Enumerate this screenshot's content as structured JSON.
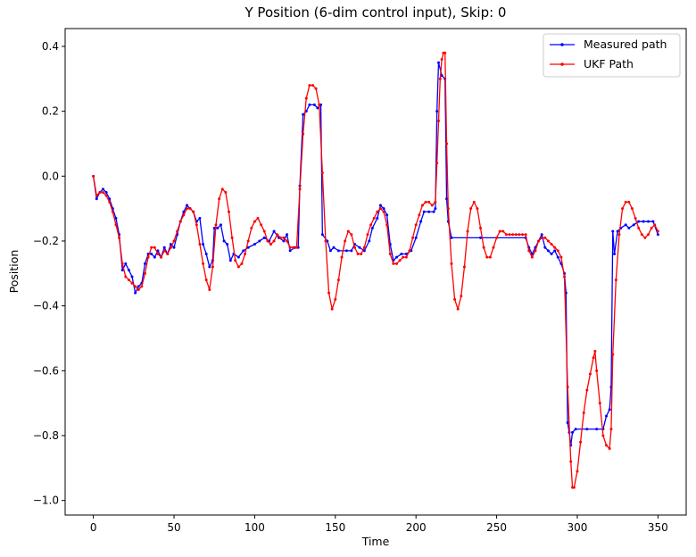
{
  "chart_data": {
    "type": "line",
    "title": "Y Position (6-dim control input), Skip: 0",
    "xlabel": "Time",
    "ylabel": "Position",
    "xlim": [
      -17.5,
      367.5
    ],
    "ylim": [
      -1.045,
      0.455
    ],
    "xticks": [
      0,
      50,
      100,
      150,
      200,
      250,
      300,
      350
    ],
    "yticks": [
      -1.0,
      -0.8,
      -0.6,
      -0.4,
      -0.2,
      0.0,
      0.2,
      0.4
    ],
    "grid": false,
    "legend_position": "top-right",
    "series": [
      {
        "name": "Measured path",
        "color": "#0000ff",
        "marker": "dot",
        "points": [
          [
            0,
            0.0
          ],
          [
            2,
            -0.07
          ],
          [
            4,
            -0.05
          ],
          [
            6,
            -0.04
          ],
          [
            8,
            -0.05
          ],
          [
            10,
            -0.07
          ],
          [
            12,
            -0.1
          ],
          [
            14,
            -0.13
          ],
          [
            16,
            -0.18
          ],
          [
            18,
            -0.29
          ],
          [
            20,
            -0.27
          ],
          [
            22,
            -0.29
          ],
          [
            24,
            -0.31
          ],
          [
            26,
            -0.36
          ],
          [
            28,
            -0.34
          ],
          [
            30,
            -0.33
          ],
          [
            32,
            -0.27
          ],
          [
            34,
            -0.24
          ],
          [
            36,
            -0.24
          ],
          [
            38,
            -0.25
          ],
          [
            40,
            -0.23
          ],
          [
            42,
            -0.25
          ],
          [
            44,
            -0.22
          ],
          [
            46,
            -0.24
          ],
          [
            48,
            -0.21
          ],
          [
            50,
            -0.22
          ],
          [
            52,
            -0.18
          ],
          [
            54,
            -0.14
          ],
          [
            56,
            -0.11
          ],
          [
            58,
            -0.09
          ],
          [
            60,
            -0.1
          ],
          [
            62,
            -0.11
          ],
          [
            64,
            -0.14
          ],
          [
            66,
            -0.13
          ],
          [
            68,
            -0.21
          ],
          [
            70,
            -0.24
          ],
          [
            72,
            -0.28
          ],
          [
            74,
            -0.26
          ],
          [
            75,
            -0.16
          ],
          [
            77,
            -0.16
          ],
          [
            79,
            -0.15
          ],
          [
            81,
            -0.2
          ],
          [
            83,
            -0.21
          ],
          [
            85,
            -0.26
          ],
          [
            87,
            -0.24
          ],
          [
            90,
            -0.25
          ],
          [
            93,
            -0.23
          ],
          [
            96,
            -0.22
          ],
          [
            100,
            -0.21
          ],
          [
            103,
            -0.2
          ],
          [
            106,
            -0.19
          ],
          [
            109,
            -0.2
          ],
          [
            112,
            -0.17
          ],
          [
            115,
            -0.19
          ],
          [
            118,
            -0.2
          ],
          [
            120,
            -0.18
          ],
          [
            122,
            -0.23
          ],
          [
            125,
            -0.22
          ],
          [
            127,
            -0.22
          ],
          [
            128,
            -0.03
          ],
          [
            130,
            0.19
          ],
          [
            132,
            0.2
          ],
          [
            134,
            0.22
          ],
          [
            137,
            0.22
          ],
          [
            139,
            0.21
          ],
          [
            141,
            0.22
          ],
          [
            142,
            -0.18
          ],
          [
            145,
            -0.2
          ],
          [
            147,
            -0.23
          ],
          [
            149,
            -0.22
          ],
          [
            152,
            -0.23
          ],
          [
            157,
            -0.23
          ],
          [
            160,
            -0.23
          ],
          [
            162,
            -0.21
          ],
          [
            165,
            -0.22
          ],
          [
            168,
            -0.23
          ],
          [
            171,
            -0.2
          ],
          [
            173,
            -0.16
          ],
          [
            176,
            -0.13
          ],
          [
            178,
            -0.09
          ],
          [
            180,
            -0.1
          ],
          [
            182,
            -0.12
          ],
          [
            184,
            -0.21
          ],
          [
            186,
            -0.26
          ],
          [
            188,
            -0.25
          ],
          [
            191,
            -0.24
          ],
          [
            194,
            -0.24
          ],
          [
            197,
            -0.23
          ],
          [
            200,
            -0.19
          ],
          [
            203,
            -0.14
          ],
          [
            205,
            -0.11
          ],
          [
            208,
            -0.11
          ],
          [
            211,
            -0.11
          ],
          [
            212,
            -0.1
          ],
          [
            213,
            0.2
          ],
          [
            214,
            0.35
          ],
          [
            216,
            0.31
          ],
          [
            218,
            0.3
          ],
          [
            219,
            -0.07
          ],
          [
            220,
            -0.14
          ],
          [
            222,
            -0.19
          ],
          [
            240,
            -0.19
          ],
          [
            268,
            -0.19
          ],
          [
            270,
            -0.22
          ],
          [
            272,
            -0.24
          ],
          [
            274,
            -0.22
          ],
          [
            276,
            -0.2
          ],
          [
            278,
            -0.18
          ],
          [
            280,
            -0.22
          ],
          [
            282,
            -0.23
          ],
          [
            284,
            -0.24
          ],
          [
            286,
            -0.23
          ],
          [
            288,
            -0.25
          ],
          [
            290,
            -0.27
          ],
          [
            292,
            -0.3
          ],
          [
            293,
            -0.36
          ],
          [
            294,
            -0.76
          ],
          [
            295,
            -0.79
          ],
          [
            296,
            -0.83
          ],
          [
            297,
            -0.79
          ],
          [
            299,
            -0.78
          ],
          [
            306,
            -0.78
          ],
          [
            312,
            -0.78
          ],
          [
            316,
            -0.78
          ],
          [
            318,
            -0.74
          ],
          [
            320,
            -0.72
          ],
          [
            321,
            -0.65
          ],
          [
            322,
            -0.17
          ],
          [
            323,
            -0.24
          ],
          [
            325,
            -0.17
          ],
          [
            327,
            -0.16
          ],
          [
            330,
            -0.15
          ],
          [
            332,
            -0.16
          ],
          [
            335,
            -0.15
          ],
          [
            338,
            -0.14
          ],
          [
            341,
            -0.14
          ],
          [
            344,
            -0.14
          ],
          [
            347,
            -0.14
          ],
          [
            350,
            -0.18
          ]
        ]
      },
      {
        "name": "UKF Path",
        "color": "#ff0000",
        "marker": "dot",
        "points": [
          [
            0,
            0.0
          ],
          [
            2,
            -0.06
          ],
          [
            4,
            -0.05
          ],
          [
            6,
            -0.05
          ],
          [
            8,
            -0.06
          ],
          [
            10,
            -0.08
          ],
          [
            12,
            -0.11
          ],
          [
            14,
            -0.15
          ],
          [
            16,
            -0.19
          ],
          [
            18,
            -0.27
          ],
          [
            20,
            -0.31
          ],
          [
            22,
            -0.32
          ],
          [
            24,
            -0.33
          ],
          [
            26,
            -0.34
          ],
          [
            28,
            -0.35
          ],
          [
            30,
            -0.34
          ],
          [
            32,
            -0.3
          ],
          [
            34,
            -0.25
          ],
          [
            36,
            -0.22
          ],
          [
            38,
            -0.22
          ],
          [
            40,
            -0.24
          ],
          [
            42,
            -0.25
          ],
          [
            44,
            -0.23
          ],
          [
            46,
            -0.24
          ],
          [
            48,
            -0.22
          ],
          [
            50,
            -0.2
          ],
          [
            52,
            -0.17
          ],
          [
            54,
            -0.14
          ],
          [
            56,
            -0.12
          ],
          [
            58,
            -0.1
          ],
          [
            60,
            -0.1
          ],
          [
            62,
            -0.11
          ],
          [
            64,
            -0.15
          ],
          [
            66,
            -0.21
          ],
          [
            68,
            -0.27
          ],
          [
            70,
            -0.32
          ],
          [
            72,
            -0.35
          ],
          [
            74,
            -0.28
          ],
          [
            76,
            -0.15
          ],
          [
            78,
            -0.07
          ],
          [
            80,
            -0.04
          ],
          [
            82,
            -0.05
          ],
          [
            84,
            -0.11
          ],
          [
            86,
            -0.19
          ],
          [
            88,
            -0.26
          ],
          [
            90,
            -0.28
          ],
          [
            92,
            -0.27
          ],
          [
            94,
            -0.24
          ],
          [
            96,
            -0.2
          ],
          [
            98,
            -0.16
          ],
          [
            100,
            -0.14
          ],
          [
            102,
            -0.13
          ],
          [
            104,
            -0.15
          ],
          [
            106,
            -0.17
          ],
          [
            108,
            -0.2
          ],
          [
            110,
            -0.21
          ],
          [
            112,
            -0.2
          ],
          [
            114,
            -0.18
          ],
          [
            116,
            -0.19
          ],
          [
            118,
            -0.19
          ],
          [
            120,
            -0.2
          ],
          [
            122,
            -0.22
          ],
          [
            124,
            -0.22
          ],
          [
            126,
            -0.22
          ],
          [
            128,
            -0.04
          ],
          [
            130,
            0.13
          ],
          [
            132,
            0.24
          ],
          [
            134,
            0.28
          ],
          [
            136,
            0.28
          ],
          [
            138,
            0.27
          ],
          [
            140,
            0.22
          ],
          [
            142,
            0.01
          ],
          [
            144,
            -0.2
          ],
          [
            146,
            -0.36
          ],
          [
            148,
            -0.41
          ],
          [
            150,
            -0.38
          ],
          [
            152,
            -0.32
          ],
          [
            154,
            -0.25
          ],
          [
            156,
            -0.2
          ],
          [
            158,
            -0.17
          ],
          [
            160,
            -0.18
          ],
          [
            162,
            -0.22
          ],
          [
            164,
            -0.24
          ],
          [
            166,
            -0.24
          ],
          [
            168,
            -0.22
          ],
          [
            170,
            -0.18
          ],
          [
            172,
            -0.15
          ],
          [
            174,
            -0.13
          ],
          [
            176,
            -0.11
          ],
          [
            178,
            -0.1
          ],
          [
            180,
            -0.11
          ],
          [
            182,
            -0.15
          ],
          [
            184,
            -0.24
          ],
          [
            186,
            -0.27
          ],
          [
            188,
            -0.27
          ],
          [
            190,
            -0.26
          ],
          [
            192,
            -0.25
          ],
          [
            194,
            -0.25
          ],
          [
            196,
            -0.23
          ],
          [
            198,
            -0.19
          ],
          [
            200,
            -0.15
          ],
          [
            202,
            -0.12
          ],
          [
            204,
            -0.09
          ],
          [
            206,
            -0.08
          ],
          [
            208,
            -0.08
          ],
          [
            210,
            -0.09
          ],
          [
            212,
            -0.08
          ],
          [
            213,
            0.04
          ],
          [
            214,
            0.17
          ],
          [
            215,
            0.3
          ],
          [
            216,
            0.36
          ],
          [
            217,
            0.38
          ],
          [
            218,
            0.38
          ],
          [
            219,
            0.1
          ],
          [
            220,
            -0.1
          ],
          [
            222,
            -0.27
          ],
          [
            224,
            -0.38
          ],
          [
            226,
            -0.41
          ],
          [
            228,
            -0.37
          ],
          [
            230,
            -0.28
          ],
          [
            232,
            -0.17
          ],
          [
            234,
            -0.1
          ],
          [
            236,
            -0.08
          ],
          [
            238,
            -0.1
          ],
          [
            240,
            -0.16
          ],
          [
            242,
            -0.22
          ],
          [
            244,
            -0.25
          ],
          [
            246,
            -0.25
          ],
          [
            248,
            -0.22
          ],
          [
            250,
            -0.19
          ],
          [
            252,
            -0.17
          ],
          [
            254,
            -0.17
          ],
          [
            256,
            -0.18
          ],
          [
            258,
            -0.18
          ],
          [
            260,
            -0.18
          ],
          [
            262,
            -0.18
          ],
          [
            264,
            -0.18
          ],
          [
            266,
            -0.18
          ],
          [
            268,
            -0.18
          ],
          [
            270,
            -0.23
          ],
          [
            272,
            -0.25
          ],
          [
            274,
            -0.23
          ],
          [
            276,
            -0.2
          ],
          [
            278,
            -0.19
          ],
          [
            280,
            -0.19
          ],
          [
            282,
            -0.2
          ],
          [
            284,
            -0.21
          ],
          [
            286,
            -0.22
          ],
          [
            288,
            -0.23
          ],
          [
            290,
            -0.25
          ],
          [
            292,
            -0.31
          ],
          [
            294,
            -0.65
          ],
          [
            296,
            -0.88
          ],
          [
            297,
            -0.96
          ],
          [
            298,
            -0.96
          ],
          [
            300,
            -0.91
          ],
          [
            302,
            -0.82
          ],
          [
            304,
            -0.73
          ],
          [
            306,
            -0.66
          ],
          [
            308,
            -0.61
          ],
          [
            310,
            -0.56
          ],
          [
            311,
            -0.54
          ],
          [
            312,
            -0.6
          ],
          [
            314,
            -0.7
          ],
          [
            316,
            -0.8
          ],
          [
            318,
            -0.83
          ],
          [
            320,
            -0.84
          ],
          [
            321,
            -0.78
          ],
          [
            322,
            -0.55
          ],
          [
            324,
            -0.32
          ],
          [
            326,
            -0.18
          ],
          [
            328,
            -0.1
          ],
          [
            330,
            -0.08
          ],
          [
            332,
            -0.08
          ],
          [
            334,
            -0.1
          ],
          [
            336,
            -0.13
          ],
          [
            338,
            -0.16
          ],
          [
            340,
            -0.18
          ],
          [
            342,
            -0.19
          ],
          [
            344,
            -0.18
          ],
          [
            346,
            -0.16
          ],
          [
            348,
            -0.15
          ],
          [
            350,
            -0.17
          ]
        ]
      }
    ]
  }
}
